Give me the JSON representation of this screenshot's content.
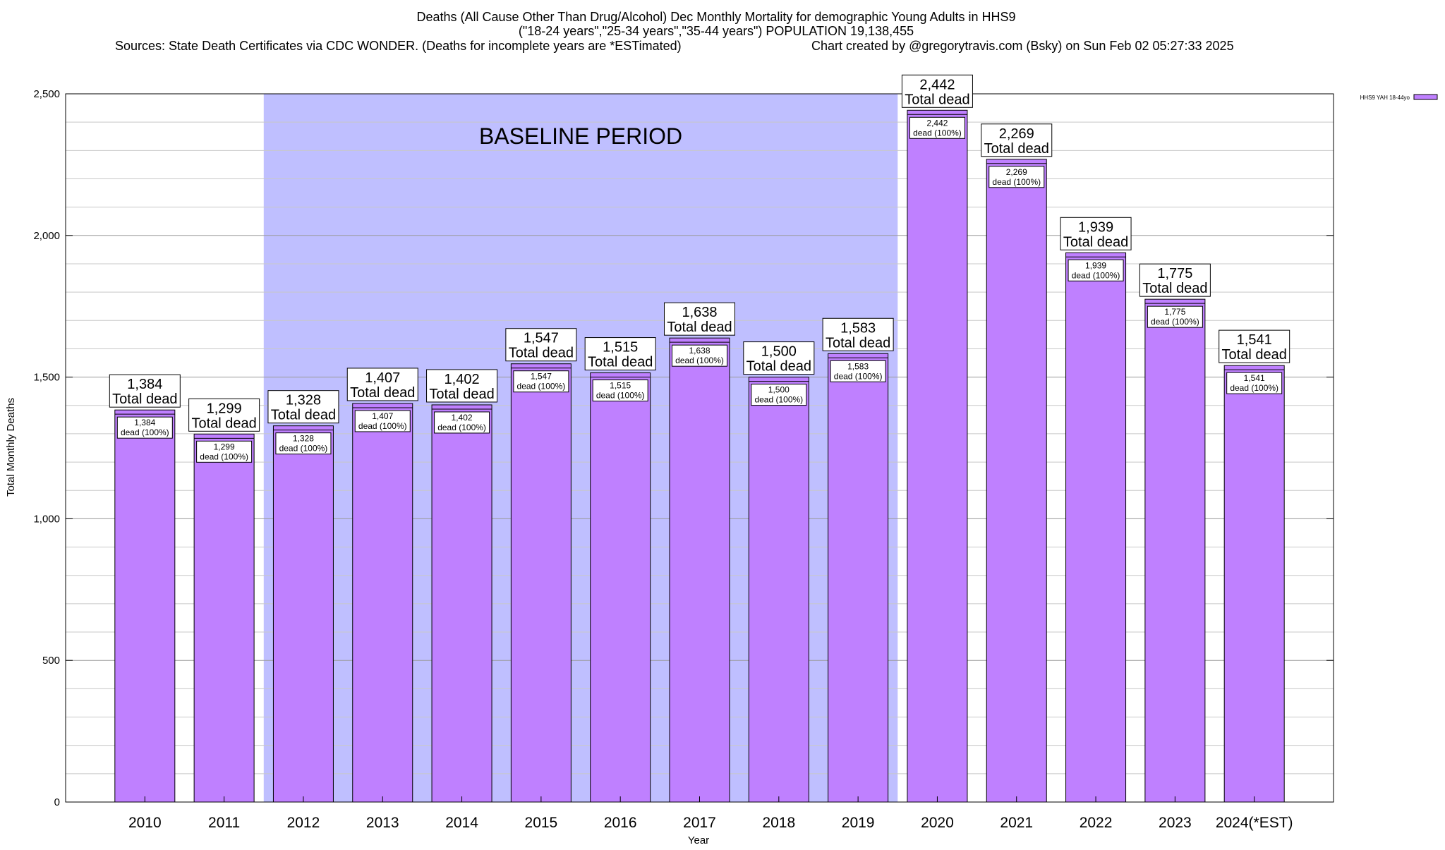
{
  "chart_data": {
    "type": "bar",
    "title_lines": [
      "Deaths (All Cause Other Than Drug/Alcohol) Dec Monthly Mortality for demographic Young Adults in HHS9",
      "(\"18-24 years\",\"25-34 years\",\"35-44 years\") POPULATION 19,138,455"
    ],
    "sources": "Sources: State Death Certificates via CDC WONDER. (Deaths for incomplete years are *ESTimated)",
    "credit": "Chart created by @gregorytravis.com (Bsky) on Sun Feb 02 05:27:33 2025",
    "xlabel": "Year",
    "ylabel": "Total Monthly Deaths",
    "ylim": [
      0,
      2500
    ],
    "yticks": [
      0,
      500,
      1000,
      1500,
      2000,
      2500
    ],
    "ytick_labels": [
      "0",
      "500",
      "1,000",
      "1,500",
      "2,000",
      "2,500"
    ],
    "categories": [
      "2010",
      "2011",
      "2012",
      "2013",
      "2014",
      "2015",
      "2016",
      "2017",
      "2018",
      "2019",
      "2020",
      "2021",
      "2022",
      "2023",
      "2024(*EST)"
    ],
    "series": [
      {
        "name": "HHS9 YAH 18-44yo",
        "color": "#bf80ff",
        "values": [
          1384,
          1299,
          1328,
          1407,
          1402,
          1547,
          1515,
          1638,
          1500,
          1583,
          2442,
          2269,
          1939,
          1775,
          1541
        ]
      }
    ],
    "value_labels": [
      "1,384",
      "1,299",
      "1,328",
      "1,407",
      "1,402",
      "1,547",
      "1,515",
      "1,638",
      "1,500",
      "1,583",
      "2,442",
      "2,269",
      "1,939",
      "1,775",
      "1,541"
    ],
    "top_label_suffix": "Total dead",
    "inner_label_suffix": "dead (100%)",
    "baseline_period": {
      "label": "BASELINE PERIOD",
      "start": "2012",
      "end": "2019",
      "color": "#bfbfff"
    },
    "grid": true,
    "legend_position": "top-right"
  }
}
